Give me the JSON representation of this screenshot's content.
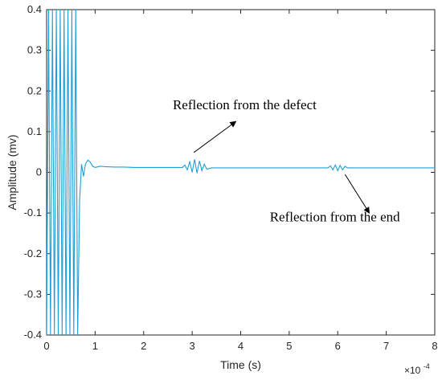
{
  "chart_data": {
    "type": "line",
    "xlabel": "Time (s)",
    "ylabel": "Amplitude (mv)",
    "x_multiplier": "×10",
    "x_exponent": "-4",
    "xlim": [
      0,
      8
    ],
    "ylim": [
      -0.4,
      0.4
    ],
    "x_ticks": [
      "0",
      "1",
      "2",
      "3",
      "4",
      "5",
      "6",
      "7",
      "8"
    ],
    "y_ticks": [
      "-0.4",
      "-0.3",
      "-0.2",
      "-0.1",
      "0",
      "0.1",
      "0.2",
      "0.3",
      "0.4"
    ],
    "grid": false,
    "line_color": "#1f9fd5",
    "series": [
      {
        "x": [
          0.0,
          0.04,
          0.08,
          0.12,
          0.16,
          0.2,
          0.24,
          0.28,
          0.32,
          0.36,
          0.4,
          0.44,
          0.48,
          0.52,
          0.56,
          0.6,
          0.64,
          0.68,
          0.72,
          0.76,
          0.8,
          0.85,
          0.9,
          0.95,
          1.0,
          1.1,
          1.2,
          1.4,
          1.6,
          1.8,
          2.0,
          2.4,
          2.8,
          2.85,
          2.9,
          2.95,
          3.0,
          3.05,
          3.1,
          3.15,
          3.2,
          3.25,
          3.3,
          3.4,
          3.6,
          4.0,
          4.5,
          5.0,
          5.5,
          5.8,
          5.85,
          5.9,
          5.95,
          6.0,
          6.05,
          6.1,
          6.15,
          6.2,
          6.4,
          7.0,
          7.5,
          8.0
        ],
        "y": [
          -0.4,
          0.4,
          -0.4,
          0.4,
          -0.4,
          0.4,
          -0.4,
          0.4,
          -0.4,
          0.4,
          -0.4,
          0.4,
          -0.4,
          0.4,
          -0.4,
          0.4,
          -0.4,
          -0.07,
          0.02,
          -0.01,
          0.02,
          0.03,
          0.025,
          0.015,
          0.012,
          0.015,
          0.014,
          0.013,
          0.013,
          0.012,
          0.012,
          0.012,
          0.012,
          0.018,
          0.006,
          0.026,
          0.0,
          0.032,
          -0.002,
          0.028,
          0.004,
          0.02,
          0.008,
          0.011,
          0.011,
          0.011,
          0.011,
          0.011,
          0.011,
          0.011,
          0.016,
          0.006,
          0.018,
          0.004,
          0.017,
          0.006,
          0.015,
          0.011,
          0.011,
          0.011,
          0.011,
          0.011
        ]
      }
    ],
    "annotations": [
      {
        "text": "Reflection from the defect",
        "x": 3.0,
        "y": 0.025,
        "text_x": 2.6,
        "text_y": 0.125
      },
      {
        "text": "Reflection from the end",
        "x": 6.1,
        "y": 0.005,
        "text_x": 6.6,
        "text_y": -0.09
      }
    ]
  }
}
